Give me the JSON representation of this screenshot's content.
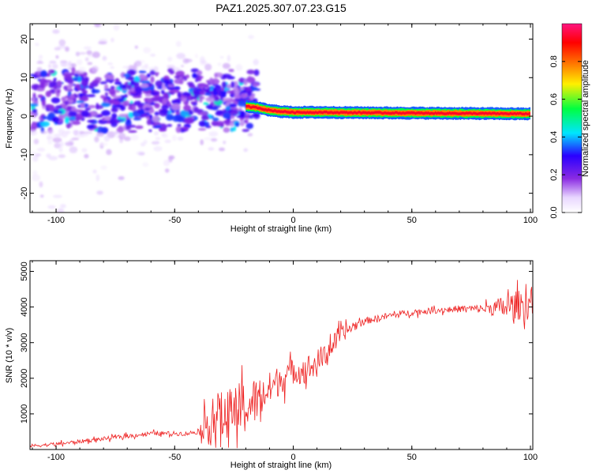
{
  "title": "PAZ1.2025.307.07.23.G15",
  "chart_data": [
    {
      "type": "heatmap",
      "xlabel": "Height of straight line (km)",
      "ylabel": "Frequency (Hz)",
      "xlim": [
        -111,
        101
      ],
      "ylim": [
        -25,
        24
      ],
      "xticks": [
        "-100",
        "-50",
        "0",
        "50",
        "100"
      ],
      "xtick_values": [
        -100,
        -50,
        0,
        50,
        100
      ],
      "yticks": [
        "-20",
        "-10",
        "0",
        "10",
        "20"
      ],
      "ytick_values": [
        -20,
        -10,
        0,
        10,
        20
      ],
      "colorbar": {
        "label": "Normalized spectral amplitude",
        "range": [
          0,
          1
        ],
        "ticks": [
          "0.0",
          "0.2",
          "0.4",
          "0.6",
          "0.8"
        ],
        "tick_values": [
          0.0,
          0.2,
          0.4,
          0.6,
          0.8
        ],
        "colors": [
          "#ffffff",
          "#e8d6ff",
          "#8a2be2",
          "#2a00ff",
          "#00e5ff",
          "#00ff40",
          "#fff000",
          "#ff8000",
          "#ff0000",
          "#ff1480"
        ]
      },
      "ridge": [
        {
          "x": -20,
          "y": 2.5,
          "amp": 0.55
        },
        {
          "x": -15,
          "y": 2.2,
          "amp": 0.6
        },
        {
          "x": -10,
          "y": 1.5,
          "amp": 0.85
        },
        {
          "x": -5,
          "y": 1.2,
          "amp": 0.9
        },
        {
          "x": 0,
          "y": 1.0,
          "amp": 0.95
        },
        {
          "x": 10,
          "y": 1.0,
          "amp": 1.0
        },
        {
          "x": 50,
          "y": 0.8,
          "amp": 1.0
        },
        {
          "x": 100,
          "y": 0.6,
          "amp": 1.0
        }
      ],
      "scatter_region": {
        "x_range": [
          -110,
          -15
        ],
        "y_range": [
          -25,
          24
        ],
        "amp_range": [
          0.05,
          0.45
        ]
      }
    },
    {
      "type": "line",
      "xlabel": "Height of straight line (km)",
      "ylabel": "SNR (10 * v/v)",
      "xlim": [
        -111,
        101
      ],
      "ylim": [
        0,
        5300
      ],
      "xticks": [
        "-100",
        "-50",
        "0",
        "50",
        "100"
      ],
      "xtick_values": [
        -100,
        -50,
        0,
        50,
        100
      ],
      "yticks": [
        "1000",
        "2000",
        "3000",
        "4000",
        "5000"
      ],
      "ytick_values": [
        1000,
        2000,
        3000,
        4000,
        5000
      ],
      "color": "#ee2222",
      "trend": {
        "x": [
          -111,
          -100,
          -80,
          -60,
          -45,
          -40,
          -35,
          -30,
          -25,
          -20,
          -15,
          -10,
          -5,
          0,
          5,
          10,
          15,
          20,
          25,
          30,
          40,
          50,
          60,
          70,
          80,
          90,
          95,
          100,
          101
        ],
        "y": [
          100,
          150,
          300,
          450,
          450,
          500,
          800,
          900,
          1000,
          1200,
          1400,
          1700,
          2000,
          2200,
          2250,
          2400,
          2800,
          3200,
          3450,
          3600,
          3750,
          3850,
          3900,
          3950,
          3950,
          4000,
          4050,
          4100,
          4150
        ]
      },
      "noise": {
        "x": [
          -111,
          -40,
          -35,
          -20,
          -10,
          0,
          10,
          20,
          30,
          40,
          60,
          80,
          90,
          100,
          101
        ],
        "amplitude": [
          60,
          80,
          900,
          1000,
          600,
          450,
          500,
          300,
          120,
          120,
          100,
          150,
          450,
          600,
          800
        ]
      }
    }
  ]
}
